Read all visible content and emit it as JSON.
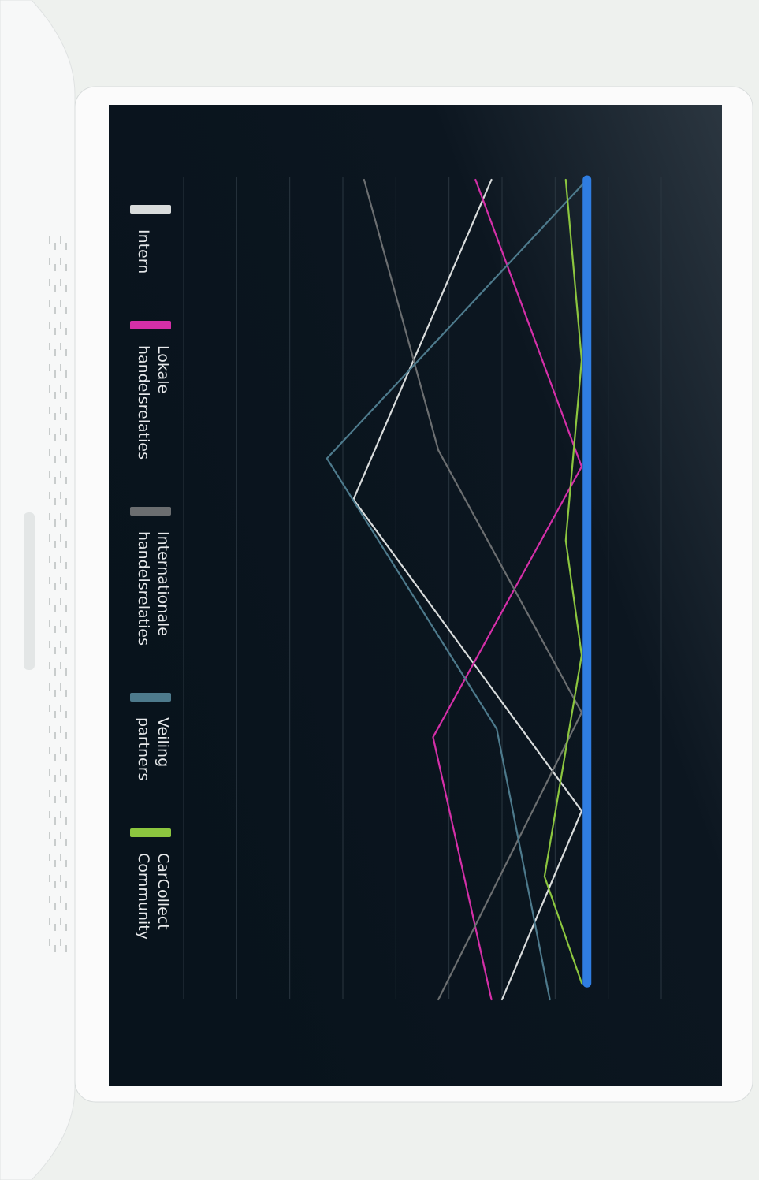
{
  "chart_data": {
    "type": "line",
    "xlim": [
      0,
      100
    ],
    "ylim": [
      0,
      9
    ],
    "yticks": [
      0,
      1,
      2,
      3,
      4,
      5,
      6,
      7,
      8,
      9
    ],
    "grid": true,
    "series": [
      {
        "name": "Intern",
        "color": "#d9dcdc",
        "x": [
          0,
          39,
          77,
          100
        ],
        "values": [
          5.8,
          3.2,
          7.5,
          6.0
        ]
      },
      {
        "name": "Lokale handelsrelaties",
        "color": "#d42fa8",
        "x": [
          0,
          35,
          68,
          100
        ],
        "values": [
          5.5,
          7.5,
          4.7,
          5.8
        ]
      },
      {
        "name": "Internationale handelsrelaties",
        "color": "#6b6e70",
        "x": [
          0,
          33,
          65,
          100
        ],
        "values": [
          3.4,
          4.8,
          7.5,
          4.8
        ]
      },
      {
        "name": "Veiling partners",
        "color": "#4d7a8c",
        "x": [
          0,
          34,
          67,
          100
        ],
        "values": [
          7.6,
          2.7,
          5.9,
          6.9
        ]
      },
      {
        "name": "CarCollect Community",
        "color": "#8cc63f",
        "x": [
          0,
          22,
          44,
          58,
          85,
          98
        ],
        "values": [
          7.2,
          7.5,
          7.2,
          7.5,
          6.8,
          7.5
        ]
      },
      {
        "color": "#2f7de1",
        "x": [
          0,
          98
        ],
        "values": [
          7.6,
          7.6
        ]
      }
    ]
  }
}
